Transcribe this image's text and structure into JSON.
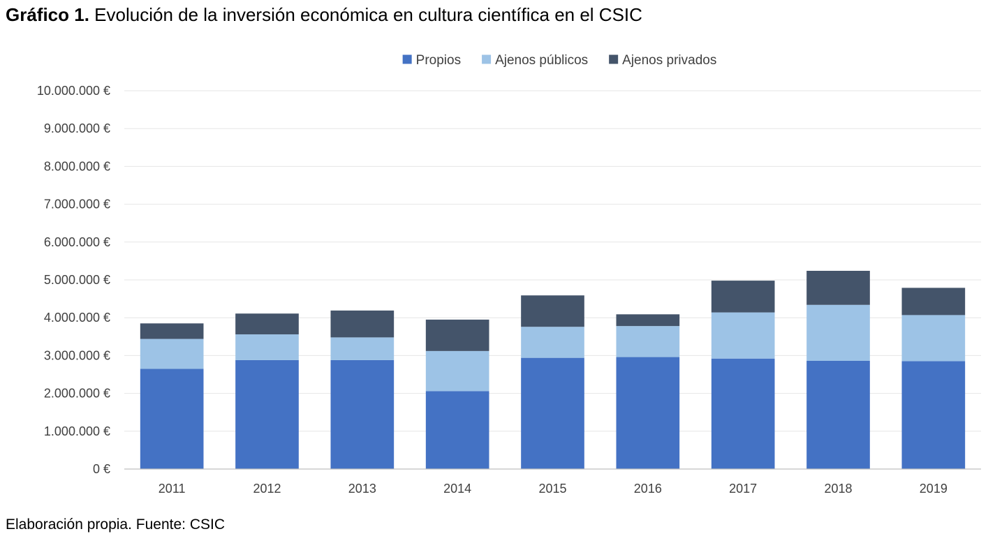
{
  "heading": {
    "lead": "Gráfico 1.",
    "text": "Evolución de la inversión económica en cultura científica en el CSIC"
  },
  "footer": {
    "source": "Elaboración propia. Fuente: CSIC"
  },
  "chart_data": {
    "type": "bar",
    "stacked": true,
    "categories": [
      "2011",
      "2012",
      "2013",
      "2014",
      "2015",
      "2016",
      "2017",
      "2018",
      "2019"
    ],
    "series": [
      {
        "name": "Propios",
        "color": "#4472C4",
        "values": [
          2650000,
          2880000,
          2880000,
          2060000,
          2940000,
          2960000,
          2920000,
          2860000,
          2850000
        ]
      },
      {
        "name": "Ajenos públicos",
        "color": "#9DC3E6",
        "values": [
          790000,
          680000,
          600000,
          1060000,
          820000,
          820000,
          1220000,
          1480000,
          1220000
        ]
      },
      {
        "name": "Ajenos privados",
        "color": "#44546A",
        "values": [
          410000,
          550000,
          710000,
          830000,
          830000,
          310000,
          840000,
          900000,
          720000
        ]
      }
    ],
    "ylim": [
      0,
      10000000
    ],
    "yticks": [
      0,
      1000000,
      2000000,
      3000000,
      4000000,
      5000000,
      6000000,
      7000000,
      8000000,
      9000000,
      10000000
    ],
    "ytick_labels": [
      "0 €",
      "1.000.000 €",
      "2.000.000 €",
      "3.000.000 €",
      "4.000.000 €",
      "5.000.000 €",
      "6.000.000 €",
      "7.000.000 €",
      "8.000.000 €",
      "9.000.000 €",
      "10.000.000 €"
    ],
    "grid": true,
    "legend_position": "top-center",
    "gridline_color": "#E6E6E6",
    "axis_color": "#BFBFBF"
  }
}
